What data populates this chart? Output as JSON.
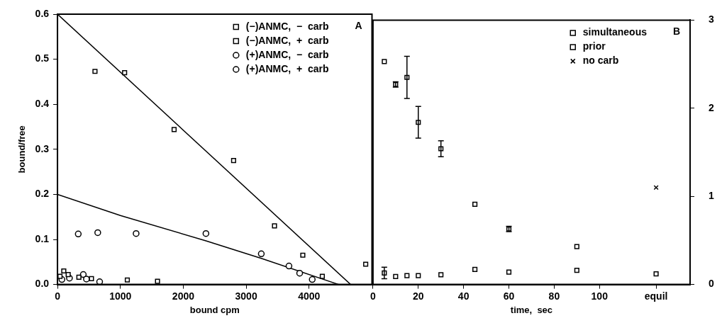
{
  "chart_data": [
    {
      "type": "scatter",
      "xlabel": "bound cpm",
      "ylabel": "bound/free",
      "xlim": [
        0,
        5000
      ],
      "xticks": [
        0,
        1000,
        2000,
        3000,
        4000
      ],
      "ylim": [
        0,
        0.6
      ],
      "yticks": [
        {
          "value": 0,
          "label": "0.0"
        },
        0.1,
        0.2,
        0.3,
        0.4,
        0.5,
        0.6
      ],
      "legend": "top right",
      "annotations": [
        "A"
      ],
      "series": [
        {
          "name": "(−)ANMC,  −  carb",
          "color": "#000000",
          "marker": "square",
          "x": [
            596,
            1067,
            1854,
            2800,
            3450,
            3900,
            4210,
            4900
          ],
          "values": [
            0.473,
            0.47,
            0.344,
            0.275,
            0.13,
            0.065,
            0.018,
            0.045
          ]
        },
        {
          "name": "(−)ANMC,  +  carb",
          "color": "#000000",
          "marker": "square",
          "x": [
            40,
            100,
            170,
            340,
            540,
            1110,
            1590
          ],
          "values": [
            0.018,
            0.03,
            0.022,
            0.016,
            0.013,
            0.01,
            0.007
          ]
        },
        {
          "name": "(+)ANMC,  −  carb",
          "color": "#000000",
          "marker": "circle",
          "x": [
            330,
            640,
            1250,
            2360,
            3240,
            3680,
            3850,
            4050
          ],
          "values": [
            0.112,
            0.115,
            0.113,
            0.113,
            0.068,
            0.041,
            0.025,
            0.011
          ]
        },
        {
          "name": "(+)ANMC,  +  carb",
          "color": "#000000",
          "marker": "circle",
          "x": [
            70,
            190,
            410,
            460,
            670
          ],
          "values": [
            0.011,
            0.014,
            0.022,
            0.012,
            0.006
          ]
        },
        {
          "type": "line",
          "color": "#000000",
          "marker": "none",
          "x": [
            0,
            4660
          ],
          "values": [
            0.6,
            0
          ]
        },
        {
          "type": "line",
          "color": "#000000",
          "marker": "none",
          "x": [
            0,
            1000,
            2360,
            3240,
            4470
          ],
          "values": [
            0.2,
            0.153,
            0.097,
            0.058,
            0
          ]
        }
      ]
    },
    {
      "type": "scatter",
      "xlabel": "time,  sec",
      "xlim": [
        0,
        140
      ],
      "xticks": [
        0,
        20,
        40,
        60,
        80,
        100,
        {
          "value": 125,
          "label": "equil"
        }
      ],
      "ylim": [
        0,
        3
      ],
      "yticks": [
        0,
        1,
        2,
        3
      ],
      "legend": "top right",
      "annotations": [
        "B"
      ],
      "series": [
        {
          "name": "simultaneous",
          "color": "#000000",
          "marker": "square",
          "x": [
            5,
            10,
            15,
            20,
            30,
            45,
            60,
            90
          ],
          "values": [
            2.53,
            2.27,
            2.35,
            1.84,
            1.54,
            0.91,
            0.63,
            0.43
          ],
          "errors": [
            null,
            0.03,
            0.24,
            0.18,
            0.09,
            null,
            0.03,
            null
          ]
        },
        {
          "name": "prior",
          "color": "#000000",
          "marker": "square",
          "x": [
            5,
            10,
            15,
            20,
            30,
            45,
            60,
            90,
            125
          ],
          "values": [
            0.13,
            0.09,
            0.1,
            0.1,
            0.11,
            0.17,
            0.14,
            0.16,
            0.12
          ],
          "errors": [
            0.065,
            null,
            null,
            null,
            null,
            null,
            null,
            null,
            null
          ]
        },
        {
          "name": "no carb",
          "color": "#000000",
          "marker": "cross",
          "x": [
            125
          ],
          "values": [
            1.1
          ]
        }
      ]
    }
  ]
}
